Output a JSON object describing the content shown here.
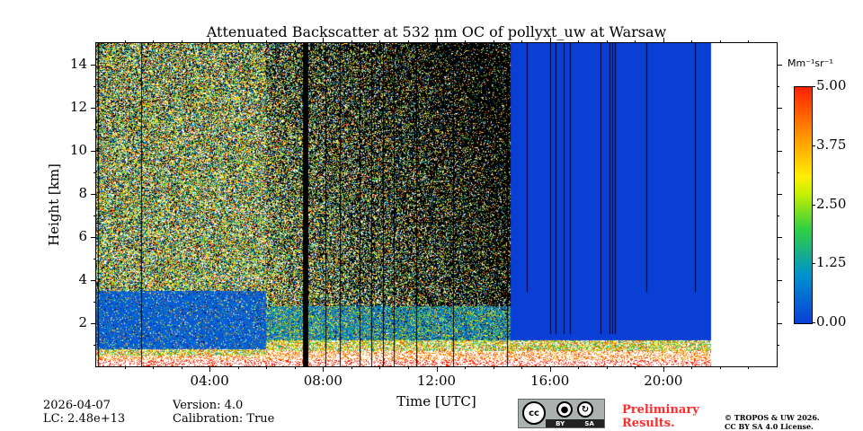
{
  "chart_data": {
    "type": "heatmap",
    "title": "Attenuated Backscatter at 532 nm OC of pollyxt_uw at Warsaw",
    "xlabel": "Time [UTC]",
    "ylabel": "Height [km]",
    "xlim_hours": [
      0,
      24
    ],
    "ylim_km": [
      0,
      15
    ],
    "x_ticks": [
      {
        "h": 4,
        "label": "04:00"
      },
      {
        "h": 8,
        "label": "08:00"
      },
      {
        "h": 12,
        "label": "12:00"
      },
      {
        "h": 16,
        "label": "16:00"
      },
      {
        "h": 20,
        "label": "20:00"
      }
    ],
    "y_ticks": [
      {
        "v": 2,
        "label": "2"
      },
      {
        "v": 4,
        "label": "4"
      },
      {
        "v": 6,
        "label": "6"
      },
      {
        "v": 8,
        "label": "8"
      },
      {
        "v": 10,
        "label": "10"
      },
      {
        "v": 12,
        "label": "12"
      },
      {
        "v": 14,
        "label": "14"
      }
    ],
    "colorbar": {
      "unit": "Mm⁻¹sr⁻¹",
      "range": [
        0,
        5
      ],
      "ticks": [
        {
          "v": 5,
          "label": "5.00"
        },
        {
          "v": 3.75,
          "label": "3.75"
        },
        {
          "v": 2.5,
          "label": "2.50"
        },
        {
          "v": 1.25,
          "label": "1.25"
        },
        {
          "v": 0,
          "label": "0.00"
        }
      ]
    },
    "segments": [
      {
        "t_start": 0.0,
        "t_end": 6.0,
        "mode": "noisy-night",
        "boundary_layer_top_km": 0.8,
        "aerosol_layer_top_km": 3.5
      },
      {
        "t_start": 6.0,
        "t_end": 14.6,
        "mode": "noisy-day",
        "boundary_layer_top_km": 1.2,
        "aerosol_layer_top_km": 2.8
      },
      {
        "t_start": 14.6,
        "t_end": 21.7,
        "mode": "low-signal",
        "boundary_layer_top_km": 1.2
      },
      {
        "t_start": 21.7,
        "t_end": 24.0,
        "mode": "no-data"
      }
    ],
    "missing_profiles_hours": [
      0.05,
      1.6,
      7.3,
      7.4,
      8.1,
      8.6,
      9.3,
      9.7,
      10.1,
      10.5,
      11.3,
      12.6,
      14.5,
      15.2,
      16.0,
      16.2,
      16.5,
      16.7,
      17.8,
      18.1,
      18.2,
      18.3,
      19.4,
      21.1
    ]
  },
  "footer": {
    "date": "2026-04-07",
    "lc": "LC: 2.48e+13",
    "version": "Version: 4.0",
    "calibration": "Calibration: True",
    "license_badge": {
      "cc": "cc",
      "by": "BY",
      "sa": "SA"
    },
    "preliminary": [
      "Preliminary",
      "Results."
    ],
    "copyright": [
      "© TROPOS & UW 2026.",
      "CC BY SA 4.0 License."
    ]
  }
}
